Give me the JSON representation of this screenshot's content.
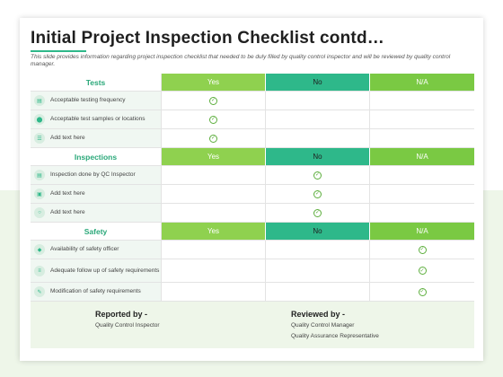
{
  "title": "Initial Project Inspection Checklist contd…",
  "subtitle": "This slide provides information regarding project inspection checklist that needed to be duly filled by quality control inspector and will be reviewed by quality control manager.",
  "options": [
    "Yes",
    "No",
    "N/A"
  ],
  "colors": {
    "yes": "#8fd14f",
    "no": "#2eb88a",
    "na": "#7ac943",
    "accent": "#2aa879"
  },
  "sections": [
    {
      "name": "Tests",
      "items": [
        {
          "label": "Acceptable testing frequency",
          "icon": "document-icon",
          "mark": "Yes"
        },
        {
          "label": "Acceptable test samples or locations",
          "icon": "location-pin-icon",
          "mark": "Yes"
        },
        {
          "label": "Add text here",
          "icon": "list-icon",
          "mark": "Yes"
        }
      ]
    },
    {
      "name": "Inspections",
      "items": [
        {
          "label": "Inspection done by QC Inspector",
          "icon": "document-icon",
          "mark": "No"
        },
        {
          "label": "Add text here",
          "icon": "clipboard-icon",
          "mark": "No"
        },
        {
          "label": "Add text here",
          "icon": "search-icon",
          "mark": "No"
        }
      ]
    },
    {
      "name": "Safety",
      "items": [
        {
          "label": "Availability of safety officer",
          "icon": "shield-icon",
          "mark": "N/A"
        },
        {
          "label": "Adequate follow up of safety requirements",
          "icon": "checklist-icon",
          "mark": "N/A"
        },
        {
          "label": "Modification of safety requirements",
          "icon": "edit-icon",
          "mark": "N/A"
        }
      ]
    }
  ],
  "footer": {
    "reported_by": {
      "heading": "Reported by -",
      "lines": [
        "Quality Control Inspector"
      ]
    },
    "reviewed_by": {
      "heading": "Reviewed by -",
      "lines": [
        "Quality Control Manager",
        "Quality Assurance Representative"
      ]
    }
  }
}
